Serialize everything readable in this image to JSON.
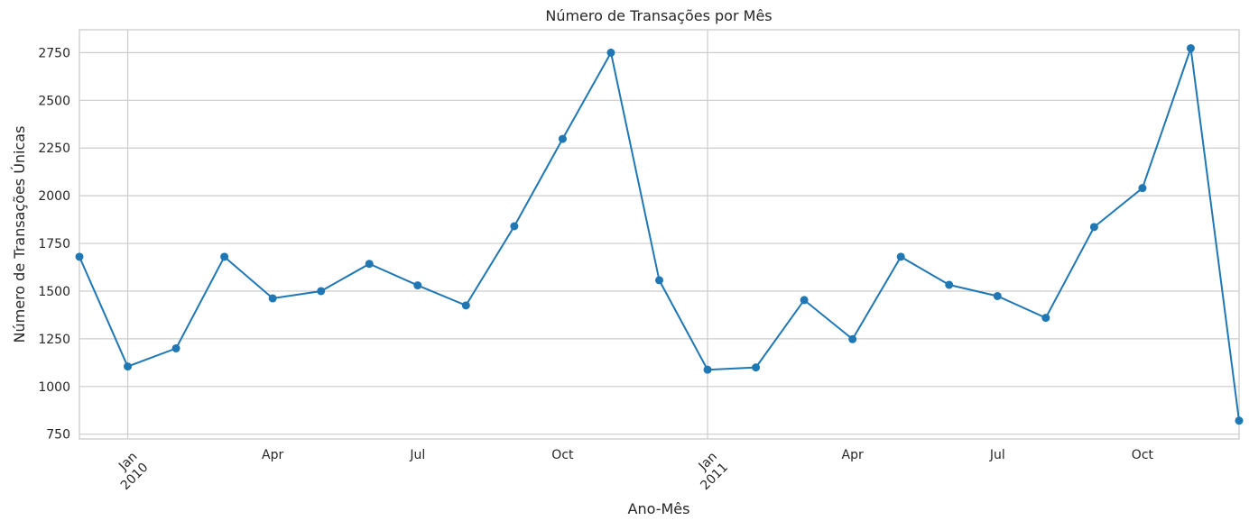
{
  "chart_data": {
    "type": "line",
    "title": "Número de Transações por Mês",
    "xlabel": "Ano-Mês",
    "ylabel": "Número de Transações Únicas",
    "x": [
      "2009-12",
      "2010-01",
      "2010-02",
      "2010-03",
      "2010-04",
      "2010-05",
      "2010-06",
      "2010-07",
      "2010-08",
      "2010-09",
      "2010-10",
      "2010-11",
      "2010-12",
      "2011-01",
      "2011-02",
      "2011-03",
      "2011-04",
      "2011-05",
      "2011-06",
      "2011-07",
      "2011-08",
      "2011-09",
      "2011-10",
      "2011-11",
      "2011-12"
    ],
    "series": [
      {
        "values": [
          1680,
          1105,
          1200,
          1680,
          1462,
          1500,
          1643,
          1530,
          1425,
          1840,
          2298,
          2750,
          1557,
          1088,
          1100,
          1453,
          1248,
          1680,
          1533,
          1474,
          1360,
          1836,
          2040,
          2773,
          821
        ]
      }
    ],
    "ylim": [
      725,
      2870
    ],
    "yticks": [
      750,
      1000,
      1250,
      1500,
      1750,
      2000,
      2250,
      2500,
      2750
    ],
    "xticks": [
      {
        "month": "2010-01",
        "label": "Jan",
        "year": "2010",
        "rotated": true
      },
      {
        "month": "2010-04",
        "label": "Apr"
      },
      {
        "month": "2010-07",
        "label": "Jul"
      },
      {
        "month": "2010-10",
        "label": "Oct"
      },
      {
        "month": "2011-01",
        "label": "Jan",
        "year": "2011",
        "rotated": true
      },
      {
        "month": "2011-04",
        "label": "Apr"
      },
      {
        "month": "2011-07",
        "label": "Jul"
      },
      {
        "month": "2011-10",
        "label": "Oct"
      }
    ],
    "grid": true,
    "colors": {
      "series": "#1f77b4",
      "grid": "#cccccc",
      "text": "#262626"
    }
  }
}
